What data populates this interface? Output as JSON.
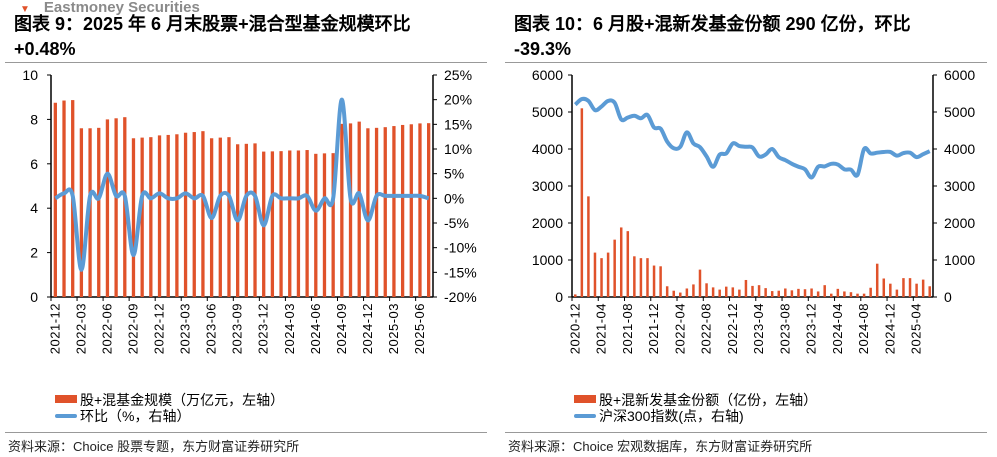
{
  "watermark": "Eastmoney Securities",
  "colors": {
    "bar": "#e0522a",
    "line": "#5b9bd5"
  },
  "chart_data": [
    {
      "type": "bar+line",
      "title": "图表 9：2025 年 6 月末股票+混合型基金规模环比 +0.48%",
      "title_line1": "图表 9：2025 年 6 月末股票+混合型基金规模环比",
      "title_line2": "+0.48%",
      "source": "资料来源：Choice 股票专题，东方财富证券研究所",
      "x_tick_labels": [
        "2021-12",
        "2022-03",
        "2022-06",
        "2022-09",
        "2022-12",
        "2023-03",
        "2023-06",
        "2023-09",
        "2023-12",
        "2024-03",
        "2024-06",
        "2024-09",
        "2024-12",
        "2025-03",
        "2025-06"
      ],
      "y_left": {
        "ticks": [
          "0",
          "2",
          "4",
          "6",
          "8",
          "10"
        ],
        "ylim": [
          0,
          10
        ]
      },
      "y_right": {
        "ticks": [
          "-20%",
          "-15%",
          "-10%",
          "-5%",
          "0%",
          "5%",
          "10%",
          "15%",
          "20%",
          "25%"
        ],
        "ylim": [
          -20,
          25
        ]
      },
      "legend_position": "bottom",
      "series": [
        {
          "name": "股+混基金规模（万亿元，左轴）",
          "kind": "bar",
          "axis": "left",
          "values": [
            8.75,
            8.85,
            8.87,
            7.6,
            7.6,
            7.62,
            8.0,
            8.05,
            8.1,
            7.15,
            7.18,
            7.2,
            7.28,
            7.3,
            7.33,
            7.4,
            7.43,
            7.47,
            7.15,
            7.18,
            7.2,
            6.88,
            6.9,
            6.92,
            6.55,
            6.56,
            6.57,
            6.6,
            6.6,
            6.62,
            6.45,
            6.47,
            6.48,
            7.8,
            7.82,
            7.9,
            7.6,
            7.62,
            7.65,
            7.7,
            7.75,
            7.78,
            7.82,
            7.83
          ]
        },
        {
          "name": "环比（%，右轴）",
          "kind": "line",
          "axis": "right",
          "values": [
            0,
            1,
            0.5,
            -14.5,
            0.5,
            0,
            5,
            0.5,
            0.5,
            -11.5,
            0.5,
            0,
            1,
            0,
            0,
            1,
            0,
            0.5,
            -4,
            0.5,
            0.5,
            -4.5,
            0.5,
            0.5,
            -5.5,
            0.5,
            0,
            0,
            0,
            0.5,
            -2.5,
            0,
            0,
            20,
            0,
            1,
            -4.5,
            0.5,
            0.5,
            0.5,
            0.5,
            0.5,
            0.5,
            0
          ]
        }
      ]
    },
    {
      "type": "bar+line",
      "title": "图表 10：6 月股+混新发基金份额 290 亿份，环比 -39.3%",
      "title_line1": "图表 10：6 月股+混新发基金份额 290 亿份，环比",
      "title_line2": "-39.3%",
      "source": "资料来源：Choice 宏观数据库，东方财富证券研究所",
      "x_tick_labels": [
        "2020-12",
        "2021-04",
        "2021-08",
        "2021-12",
        "2022-04",
        "2022-08",
        "2022-12",
        "2023-04",
        "2023-08",
        "2023-12",
        "2024-04",
        "2024-08",
        "2024-12",
        "2025-04"
      ],
      "y_left": {
        "ticks": [
          "0",
          "1000",
          "2000",
          "3000",
          "4000",
          "5000",
          "6000"
        ],
        "ylim": [
          0,
          6000
        ]
      },
      "y_right": {
        "ticks": [
          "0",
          "1000",
          "2000",
          "3000",
          "4000",
          "5000",
          "6000"
        ],
        "ylim": [
          0,
          6000
        ]
      },
      "legend_position": "bottom",
      "series": [
        {
          "name": "股+混新发基金份额（亿份，左轴）",
          "kind": "bar",
          "axis": "left",
          "values": [
            70,
            5100,
            2720,
            1200,
            1050,
            1200,
            1550,
            1880,
            1780,
            1100,
            1050,
            1050,
            850,
            830,
            290,
            170,
            120,
            230,
            340,
            740,
            370,
            260,
            200,
            280,
            260,
            200,
            460,
            300,
            320,
            240,
            160,
            170,
            230,
            180,
            220,
            210,
            230,
            150,
            320,
            90,
            220,
            150,
            130,
            90,
            90,
            250,
            900,
            500,
            360,
            200,
            510,
            510,
            360,
            470,
            290
          ]
        },
        {
          "name": "沪深300指数(点，右轴)",
          "kind": "line",
          "axis": "right",
          "values": [
            5200,
            5350,
            5300,
            5050,
            5150,
            5300,
            5250,
            4800,
            4850,
            4900,
            4830,
            4920,
            4580,
            4550,
            4200,
            4020,
            4060,
            4450,
            4150,
            4050,
            3800,
            3520,
            3850,
            3880,
            4150,
            4080,
            4060,
            4040,
            3800,
            3850,
            4000,
            3780,
            3700,
            3600,
            3520,
            3450,
            3230,
            3520,
            3530,
            3600,
            3580,
            3450,
            3440,
            3300,
            4000,
            3880,
            3900,
            3920,
            3920,
            3820,
            3890,
            3900,
            3780,
            3860,
            3940
          ]
        }
      ]
    }
  ]
}
